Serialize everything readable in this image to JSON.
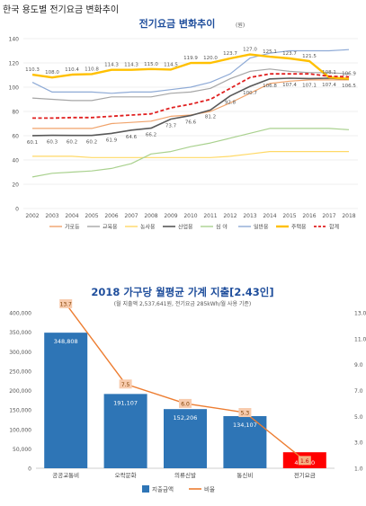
{
  "page": {
    "title": "한국 용도별 전기요금 변화추이"
  },
  "colors": {
    "가로등": "#f0a36b",
    "교육용": "#a6a6a6",
    "농사용": "#ffd966",
    "산업용": "#595959",
    "심야": "#a9d18e",
    "일반용": "#8eaad6",
    "주택용": "#ffc000",
    "합계": "#e02020",
    "bar": "#2e75b6",
    "bar_highlight": "#ff0000",
    "ratio": "#ed7d31",
    "title_blue": "#1f4e9c"
  },
  "chart_data": [
    {
      "type": "line",
      "title": "전기요금 변화추이",
      "title_suffix": "(원)",
      "x": [
        "2002",
        "2003",
        "2004",
        "2005",
        "2006",
        "2007",
        "2008",
        "2009",
        "2010",
        "2011",
        "2012",
        "2013",
        "2014",
        "2015",
        "2016",
        "2017",
        "2018"
      ],
      "ylim": [
        0,
        140
      ],
      "yticks": [
        0,
        20,
        40,
        60,
        80,
        100,
        120,
        140
      ],
      "grid": true,
      "legend_position": "bottom",
      "series": [
        {
          "name": "가로등",
          "key": "가로등",
          "dash": false,
          "width": 1.2,
          "values": [
            66,
            66,
            66,
            66,
            70,
            71,
            72,
            76,
            77,
            80,
            87,
            95,
            103,
            105,
            106,
            106,
            106
          ]
        },
        {
          "name": "교육용",
          "key": "교육용",
          "dash": false,
          "width": 1.2,
          "values": [
            91,
            90,
            89,
            89,
            92,
            92,
            92,
            95,
            96,
            99,
            107,
            113,
            115,
            113,
            112,
            112,
            111
          ]
        },
        {
          "name": "농사용",
          "key": "농사용",
          "dash": false,
          "width": 1.2,
          "values": [
            43,
            43,
            43,
            42,
            42,
            42,
            42,
            42,
            42,
            42,
            43,
            45,
            47,
            47,
            47,
            47,
            47
          ]
        },
        {
          "name": "산업용",
          "key": "산업용",
          "dash": false,
          "width": 1.6,
          "values": [
            60.1,
            60.3,
            60.2,
            60.2,
            61.9,
            64.6,
            66.2,
            73.7,
            76.6,
            81.2,
            92.8,
            100.7,
            106.8,
            107.4,
            107.1,
            107.4,
            106.5
          ]
        },
        {
          "name": "심 야",
          "key": "심야",
          "dash": false,
          "width": 1.2,
          "values": [
            26,
            29,
            30,
            31,
            33,
            37,
            45,
            47,
            51,
            54,
            58,
            62,
            66,
            66,
            66,
            66,
            65
          ]
        },
        {
          "name": "일반용",
          "key": "일반용",
          "dash": false,
          "width": 1.2,
          "values": [
            104,
            96,
            96,
            96,
            95,
            96,
            96,
            98,
            100,
            104,
            111,
            124,
            128,
            130,
            130,
            130,
            131
          ]
        },
        {
          "name": "주택용",
          "key": "주택용",
          "dash": false,
          "width": 2.4,
          "values": [
            110.3,
            108.0,
            110.4,
            110.8,
            114.3,
            114.3,
            115.0,
            114.5,
            119.9,
            120.0,
            123.7,
            127.0,
            125.1,
            123.7,
            121.5,
            108.1,
            106.9
          ]
        },
        {
          "name": "합계",
          "key": "합계",
          "dash": true,
          "width": 1.8,
          "values": [
            74.5,
            74.5,
            75,
            75,
            76,
            77,
            78,
            83,
            86,
            90,
            99,
            108,
            111,
            111,
            111,
            109,
            108.5
          ]
        }
      ],
      "data_labels": {
        "주택용": [
          "110.3",
          "108.0",
          "110.4",
          "110.8",
          "114.3",
          "114.3",
          "115.0",
          "114.5",
          "119.9",
          "120.0",
          "123.7",
          "127.0",
          "125.1",
          "123.7",
          "121.5",
          "108.1",
          "106.9"
        ],
        "산업용": [
          "60.1",
          "60.3",
          "60.2",
          "60.2",
          "61.9",
          "64.6",
          "66.2",
          "73.7",
          "76.6",
          "81.2",
          "92.8",
          "100.7",
          "106.8",
          "107.4",
          "107.1",
          "107.4",
          "106.5"
        ]
      }
    },
    {
      "type": "bar",
      "title": "2018 가구당 월평균 가계 지출[2.43인]",
      "subtitle": "(월 지출액 2,537,641원, 전기요금 285kWh/월 사용 기준)",
      "categories": [
        "공공교통비",
        "오락문화",
        "의류신발",
        "통신비",
        "전기요금"
      ],
      "series": [
        {
          "name": "지출금액",
          "values": [
            348808,
            191107,
            152206,
            134107,
            41190
          ],
          "labels": [
            "348,808",
            "191,107",
            "152,206",
            "134,107",
            "41,190"
          ]
        },
        {
          "name": "비율",
          "axis": "right",
          "values": [
            13.7,
            7.5,
            6.0,
            5.3,
            1.6
          ],
          "labels": [
            "13.7",
            "7.5",
            "6.0",
            "5.3",
            "1.6"
          ]
        }
      ],
      "ylim": [
        0,
        400000
      ],
      "yticks": [
        "0",
        "50,000",
        "100,000",
        "150,000",
        "200,000",
        "250,000",
        "300,000",
        "350,000",
        "400,000"
      ],
      "y2lim": [
        1.0,
        13.0
      ],
      "y2ticks": [
        "1.0",
        "3.0",
        "5.0",
        "7.0",
        "9.0",
        "11.0",
        "13.0"
      ],
      "legend_position": "bottom"
    }
  ]
}
